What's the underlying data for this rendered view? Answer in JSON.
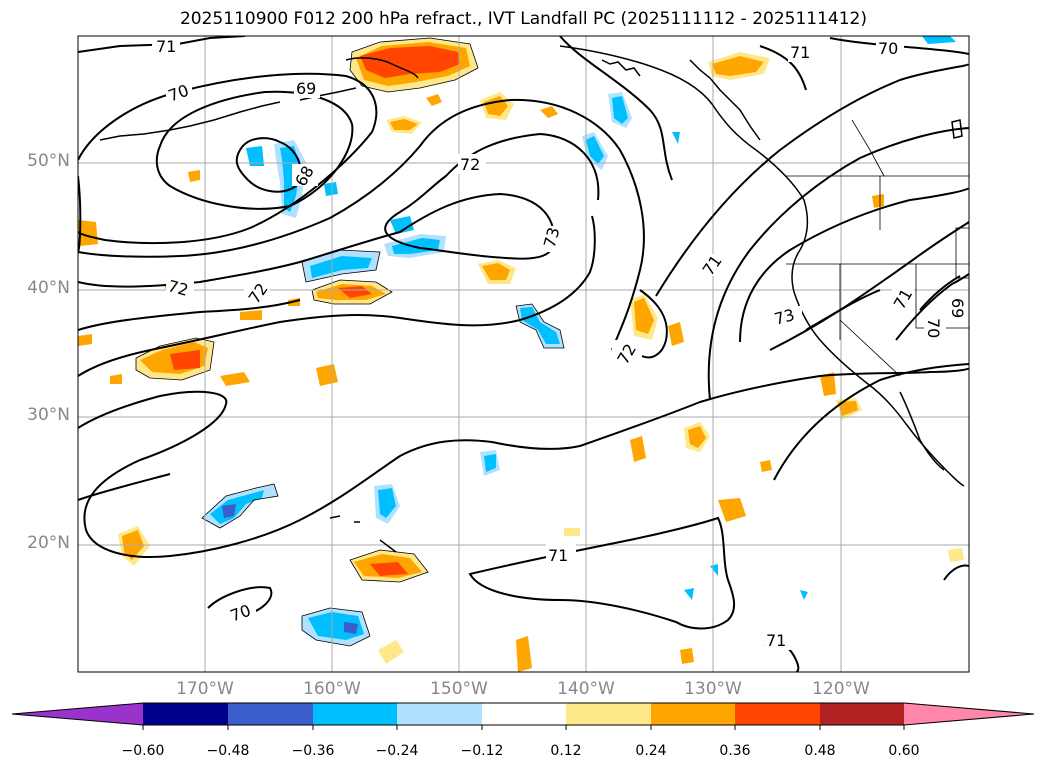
{
  "title": "2025110900 F012 200 hPa refract., IVT Landfall PC (2025111112 - 2025111412)",
  "map": {
    "lat_labels": [
      "50°N",
      "40°N",
      "30°N",
      "20°N"
    ],
    "lon_labels": [
      "170°W",
      "160°W",
      "150°W",
      "140°W",
      "130°W",
      "120°W"
    ],
    "contour_labels": [
      "71",
      "70",
      "69",
      "68",
      "72",
      "73",
      "72",
      "71",
      "72",
      "73",
      "71",
      "70",
      "69",
      "70",
      "71",
      "70",
      "71",
      "72",
      "71"
    ]
  },
  "colorbar": {
    "ticks": [
      "−0.60",
      "−0.48",
      "−0.36",
      "−0.24",
      "−0.12",
      "0.12",
      "0.24",
      "0.36",
      "0.48",
      "0.60"
    ],
    "colors": [
      "#9933cc",
      "#00008b",
      "#3a5fcd",
      "#00bfff",
      "#b0e2ff",
      "#ffffff",
      "#ffe88a",
      "#ffa500",
      "#ff4500",
      "#b22222",
      "#ff88aa"
    ]
  }
}
